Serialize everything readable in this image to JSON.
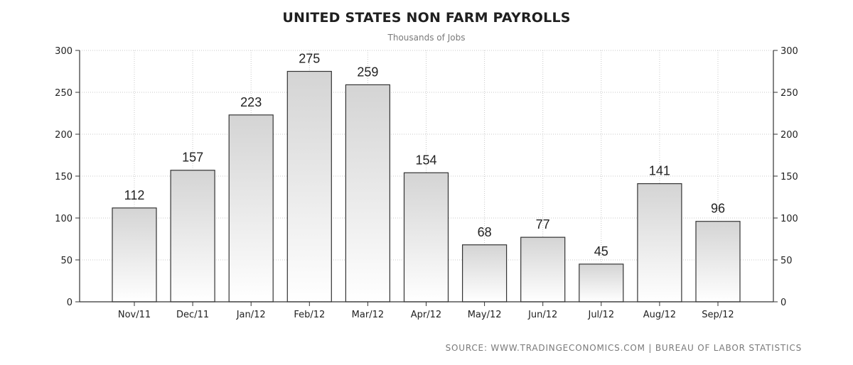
{
  "header": {
    "title": "UNITED STATES NON FARM PAYROLLS",
    "subtitle": "Thousands of Jobs"
  },
  "footer": {
    "source": "SOURCE: WWW.TRADINGECONOMICS.COM | BUREAU OF LABOR STATISTICS"
  },
  "colors": {
    "bar_top": "#d4d4d4",
    "bar_bottom": "#ffffff",
    "bar_stroke": "#333333",
    "grid": "#c8c8c8",
    "axis": "#333333"
  },
  "chart_data": {
    "type": "bar",
    "title": "UNITED STATES NON FARM PAYROLLS",
    "subtitle": "Thousands of Jobs",
    "categories": [
      "Nov/11",
      "Dec/11",
      "Jan/12",
      "Feb/12",
      "Mar/12",
      "Apr/12",
      "May/12",
      "Jun/12",
      "Jul/12",
      "Aug/12",
      "Sep/12"
    ],
    "values": [
      112,
      157,
      223,
      275,
      259,
      154,
      68,
      77,
      45,
      141,
      96
    ],
    "data_labels": [
      "112",
      "157",
      "223",
      "275",
      "259",
      "154",
      "68",
      "77",
      "45",
      "141",
      "96"
    ],
    "ylim": [
      0,
      300
    ],
    "yticks": [
      0,
      50,
      100,
      150,
      200,
      250,
      300
    ],
    "ytick_labels": [
      "0",
      "50",
      "100",
      "150",
      "200",
      "250",
      "300"
    ],
    "xlabel": "",
    "ylabel": "",
    "grid": true,
    "legend": "none",
    "axes": "left and right"
  }
}
